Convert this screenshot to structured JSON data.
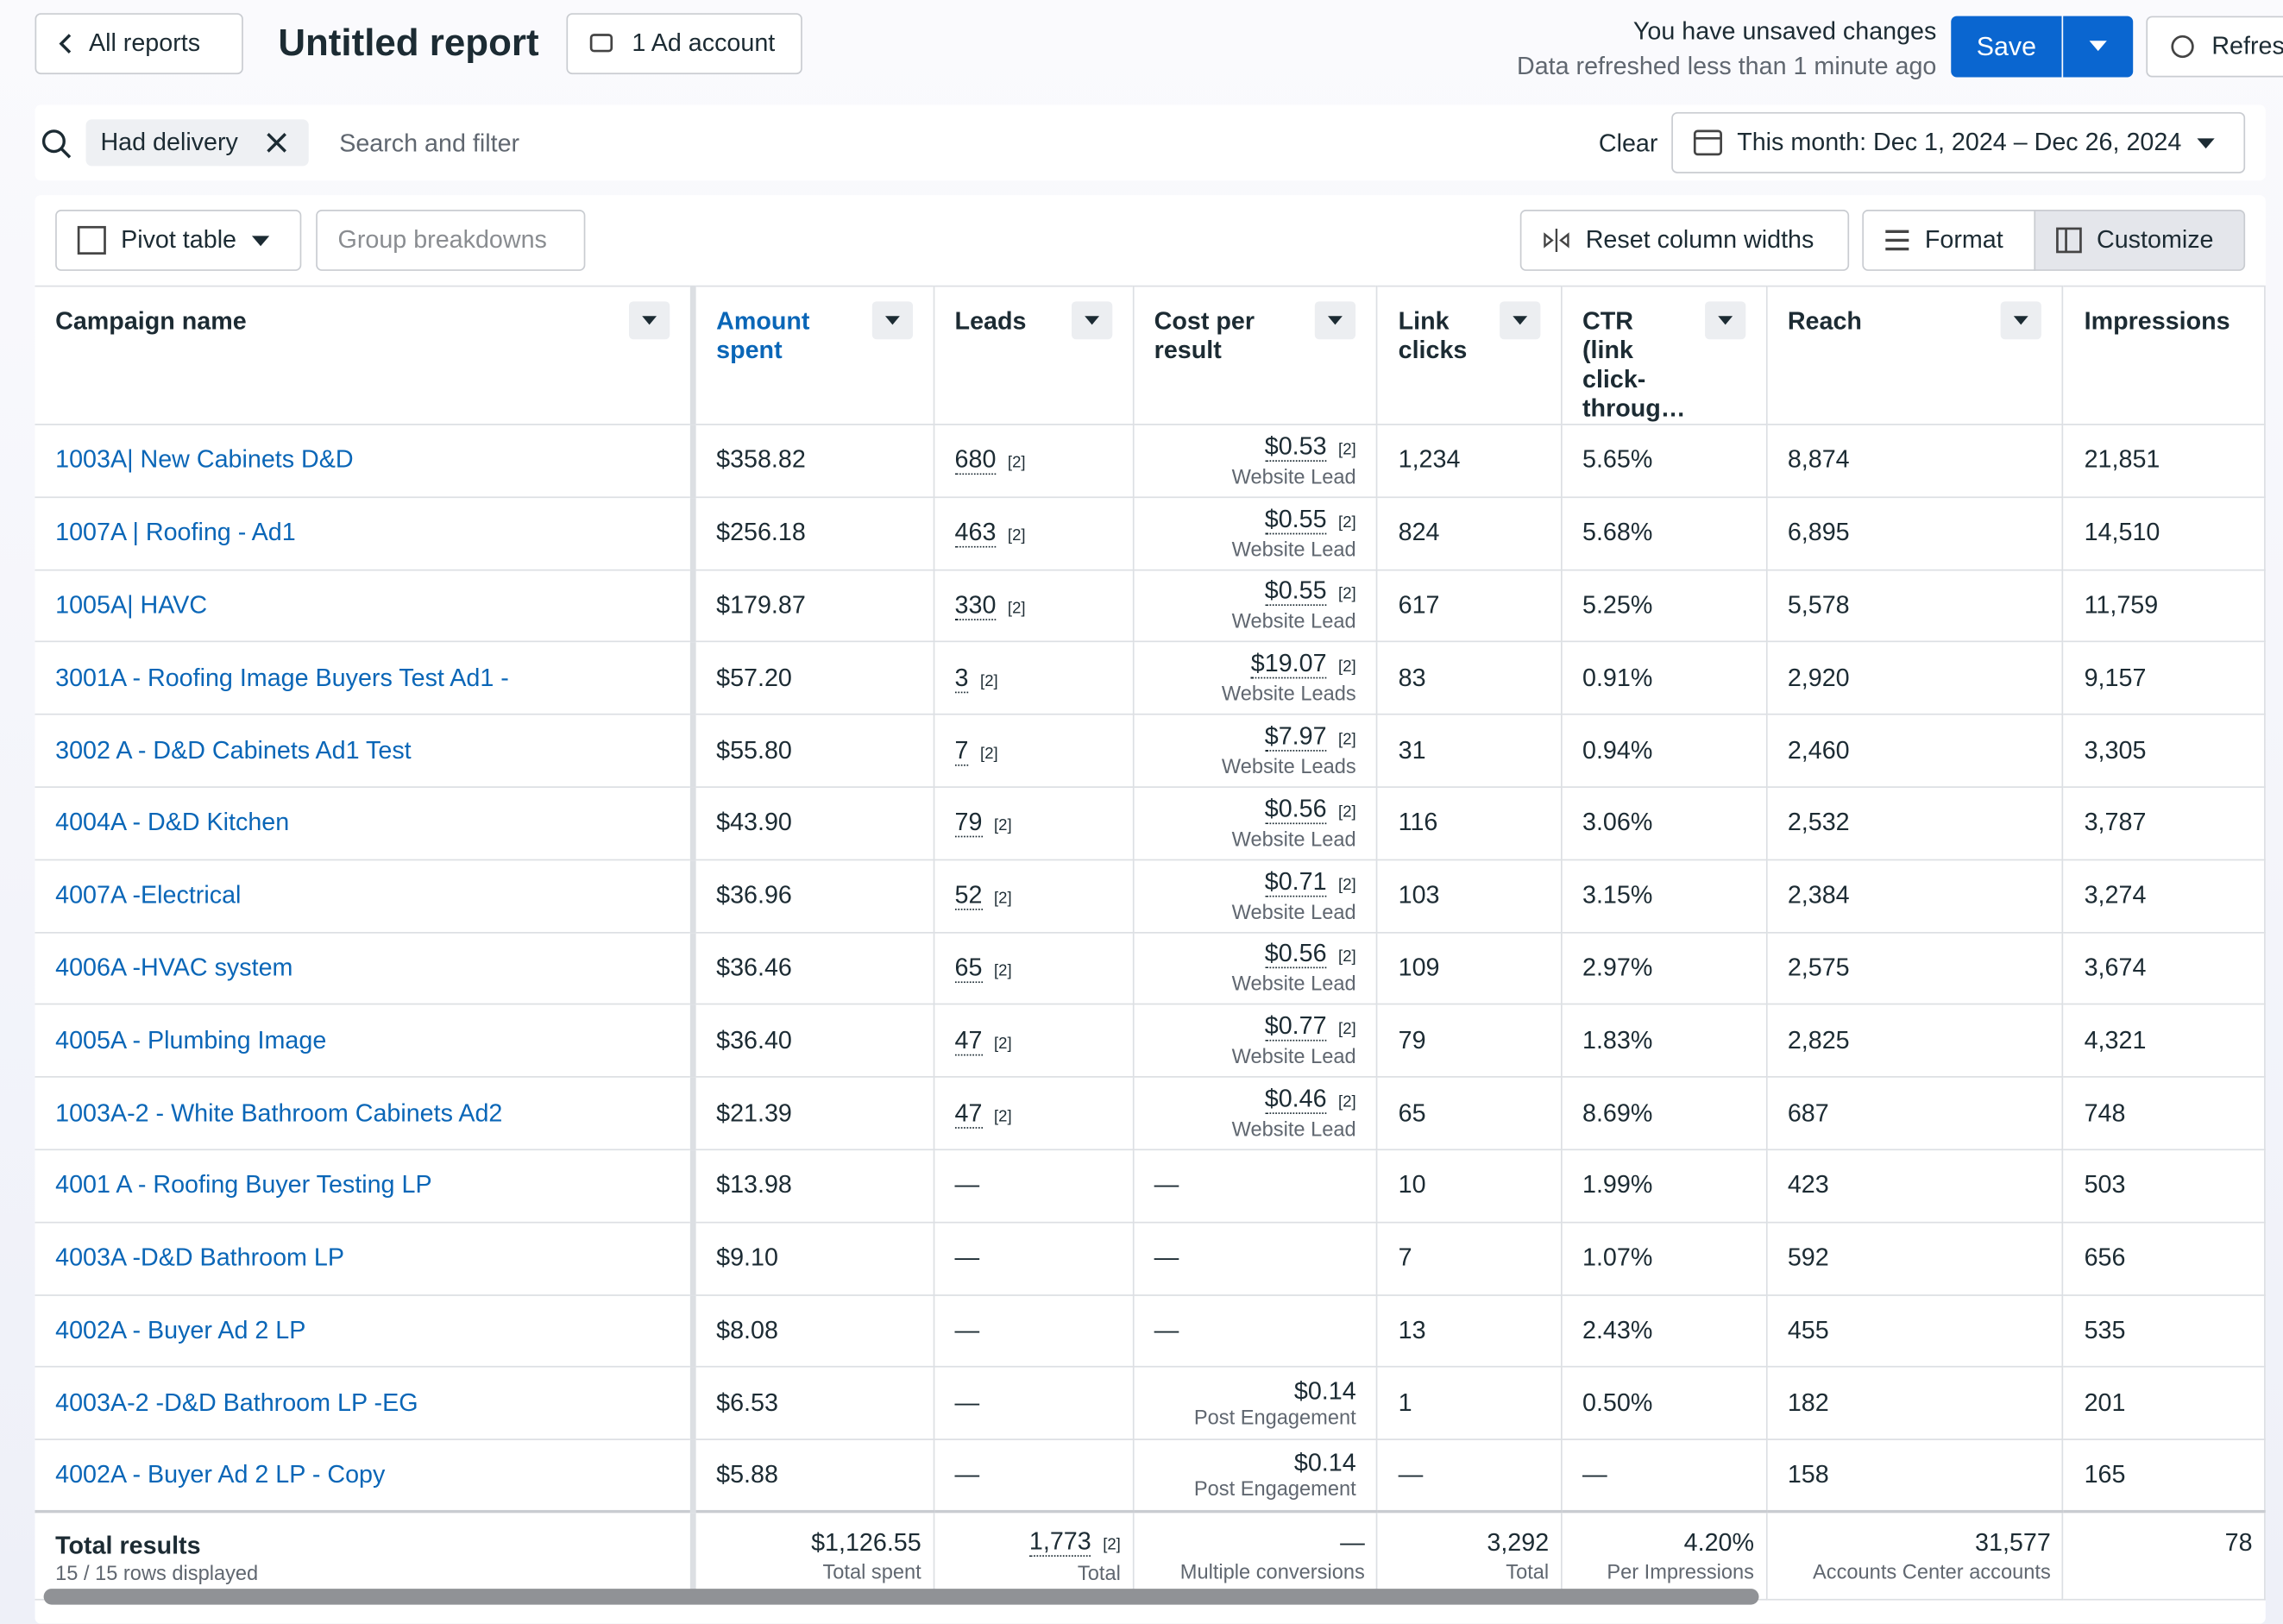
{
  "header": {
    "back": "All reports",
    "title": "Untitled report",
    "account": "1 Ad account",
    "unsaved": "You have unsaved changes",
    "refreshed": "Data refreshed less than 1 minute ago",
    "save": "Save",
    "refresh": "Refres"
  },
  "filter": {
    "chip": "Had delivery",
    "placeholder": "Search and filter",
    "clear": "Clear",
    "date": "This month: Dec 1, 2024 – Dec 26, 2024"
  },
  "toolbar": {
    "pivot": "Pivot table",
    "group": "Group breakdowns",
    "reset": "Reset column widths",
    "format": "Format",
    "customize": "Customize"
  },
  "table": {
    "columns": [
      "Campaign name",
      "Amount spent",
      "Leads",
      "Cost per result",
      "Link clicks",
      "CTR (link click-throug…",
      "Reach",
      "Impressions"
    ],
    "rows": [
      {
        "campaign": "1003A| New Cabinets D&D",
        "amount": "$358.82",
        "leads": "680",
        "leads_ref": "[2]",
        "cost": "$0.53",
        "cost_ref": "[2]",
        "cost_label": "Website Lead",
        "clicks": "1,234",
        "ctr": "5.65%",
        "reach": "8,874",
        "impressions": "21,851"
      },
      {
        "campaign": "1007A | Roofing - Ad1",
        "amount": "$256.18",
        "leads": "463",
        "leads_ref": "[2]",
        "cost": "$0.55",
        "cost_ref": "[2]",
        "cost_label": "Website Lead",
        "clicks": "824",
        "ctr": "5.68%",
        "reach": "6,895",
        "impressions": "14,510"
      },
      {
        "campaign": "1005A| HAVC",
        "amount": "$179.87",
        "leads": "330",
        "leads_ref": "[2]",
        "cost": "$0.55",
        "cost_ref": "[2]",
        "cost_label": "Website Lead",
        "clicks": "617",
        "ctr": "5.25%",
        "reach": "5,578",
        "impressions": "11,759"
      },
      {
        "campaign": "3001A - Roofing Image Buyers Test Ad1 -",
        "amount": "$57.20",
        "leads": "3",
        "leads_ref": "[2]",
        "cost": "$19.07",
        "cost_ref": "[2]",
        "cost_label": "Website Leads",
        "clicks": "83",
        "ctr": "0.91%",
        "reach": "2,920",
        "impressions": "9,157"
      },
      {
        "campaign": "3002 A - D&D Cabinets Ad1 Test",
        "amount": "$55.80",
        "leads": "7",
        "leads_ref": "[2]",
        "cost": "$7.97",
        "cost_ref": "[2]",
        "cost_label": "Website Leads",
        "clicks": "31",
        "ctr": "0.94%",
        "reach": "2,460",
        "impressions": "3,305"
      },
      {
        "campaign": "4004A - D&D Kitchen",
        "amount": "$43.90",
        "leads": "79",
        "leads_ref": "[2]",
        "cost": "$0.56",
        "cost_ref": "[2]",
        "cost_label": "Website Lead",
        "clicks": "116",
        "ctr": "3.06%",
        "reach": "2,532",
        "impressions": "3,787"
      },
      {
        "campaign": "4007A -Electrical",
        "amount": "$36.96",
        "leads": "52",
        "leads_ref": "[2]",
        "cost": "$0.71",
        "cost_ref": "[2]",
        "cost_label": "Website Lead",
        "clicks": "103",
        "ctr": "3.15%",
        "reach": "2,384",
        "impressions": "3,274"
      },
      {
        "campaign": "4006A -HVAC system",
        "amount": "$36.46",
        "leads": "65",
        "leads_ref": "[2]",
        "cost": "$0.56",
        "cost_ref": "[2]",
        "cost_label": "Website Lead",
        "clicks": "109",
        "ctr": "2.97%",
        "reach": "2,575",
        "impressions": "3,674"
      },
      {
        "campaign": "4005A - Plumbing Image",
        "amount": "$36.40",
        "leads": "47",
        "leads_ref": "[2]",
        "cost": "$0.77",
        "cost_ref": "[2]",
        "cost_label": "Website Lead",
        "clicks": "79",
        "ctr": "1.83%",
        "reach": "2,825",
        "impressions": "4,321"
      },
      {
        "campaign": "1003A-2 - White Bathroom Cabinets Ad2",
        "amount": "$21.39",
        "leads": "47",
        "leads_ref": "[2]",
        "cost": "$0.46",
        "cost_ref": "[2]",
        "cost_label": "Website Lead",
        "clicks": "65",
        "ctr": "8.69%",
        "reach": "687",
        "impressions": "748"
      },
      {
        "campaign": "4001 A - Roofing Buyer Testing LP",
        "amount": "$13.98",
        "leads": "—",
        "cost": "—",
        "clicks": "10",
        "ctr": "1.99%",
        "reach": "423",
        "impressions": "503"
      },
      {
        "campaign": "4003A -D&D Bathroom LP",
        "amount": "$9.10",
        "leads": "—",
        "cost": "—",
        "clicks": "7",
        "ctr": "1.07%",
        "reach": "592",
        "impressions": "656"
      },
      {
        "campaign": "4002A - Buyer Ad 2 LP",
        "amount": "$8.08",
        "leads": "—",
        "cost": "—",
        "clicks": "13",
        "ctr": "2.43%",
        "reach": "455",
        "impressions": "535"
      },
      {
        "campaign": "4003A-2 -D&D Bathroom LP -EG",
        "amount": "$6.53",
        "leads": "—",
        "cost": "$0.14",
        "cost_label": "Post Engagement",
        "clicks": "1",
        "ctr": "0.50%",
        "reach": "182",
        "impressions": "201"
      },
      {
        "campaign": "4002A - Buyer Ad 2 LP - Copy",
        "amount": "$5.88",
        "leads": "—",
        "cost": "$0.14",
        "cost_label": "Post Engagement",
        "clicks": "—",
        "ctr": "—",
        "reach": "158",
        "impressions": "165"
      }
    ],
    "totals": {
      "label": "Total results",
      "rows_displayed": "15 / 15 rows displayed",
      "amount": "$1,126.55",
      "amount_label": "Total spent",
      "leads": "1,773",
      "leads_ref": "[2]",
      "leads_label": "Total",
      "cost": "—",
      "cost_label": "Multiple conversions",
      "clicks": "3,292",
      "clicks_label": "Total",
      "ctr": "4.20%",
      "ctr_label": "Per Impressions",
      "reach": "31,577",
      "reach_label": "Accounts Center accounts",
      "impressions": "78"
    }
  }
}
